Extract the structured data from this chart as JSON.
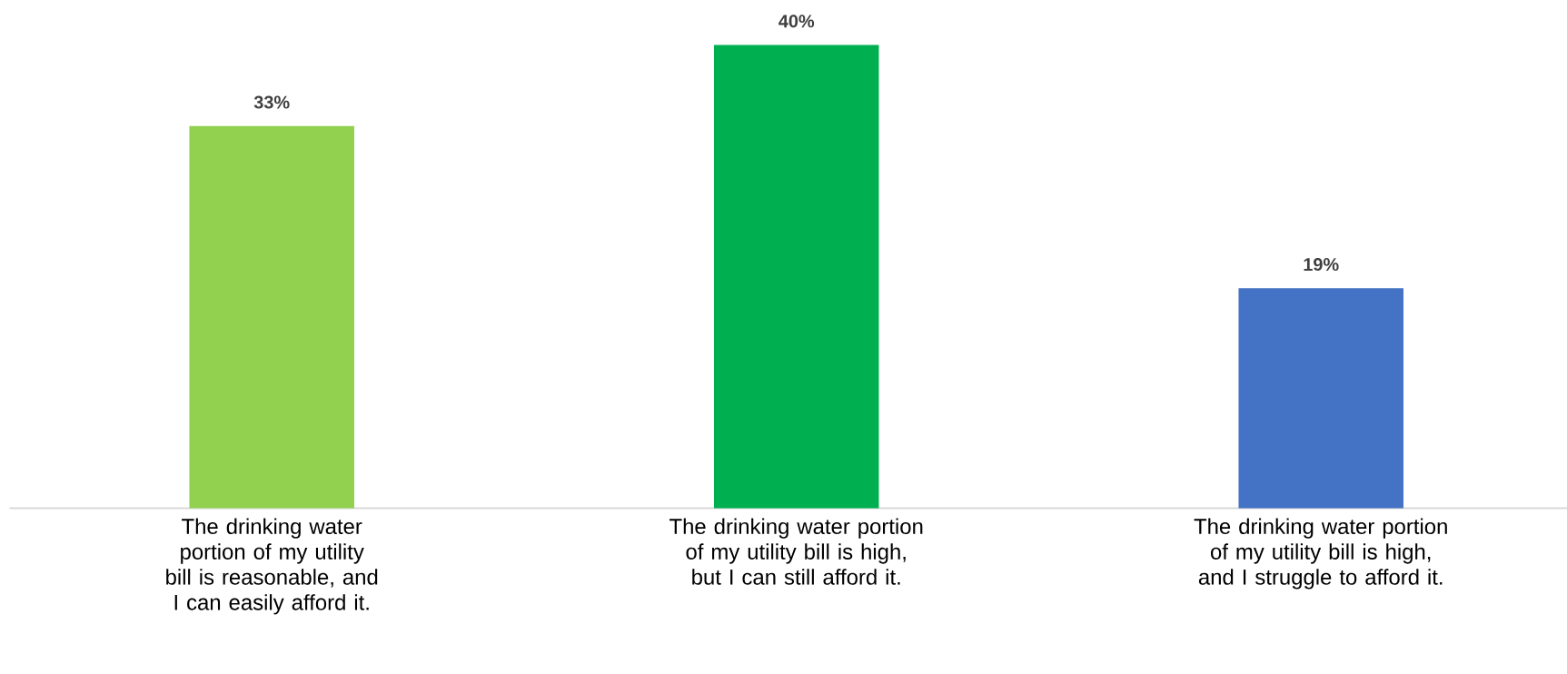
{
  "chart_data": {
    "type": "bar",
    "categories": [
      "The drinking water portion of my utility bill is reasonable, and I can easily afford it.",
      "The drinking water portion of my utility bill is high, but I can still afford it.",
      "The drinking water portion of my utility bill is high, and I struggle to afford it."
    ],
    "values": [
      33,
      40,
      19
    ],
    "colors": [
      "#92d050",
      "#00b050",
      "#4472c4"
    ],
    "value_labels": [
      "33%",
      "40%",
      "19%"
    ]
  }
}
